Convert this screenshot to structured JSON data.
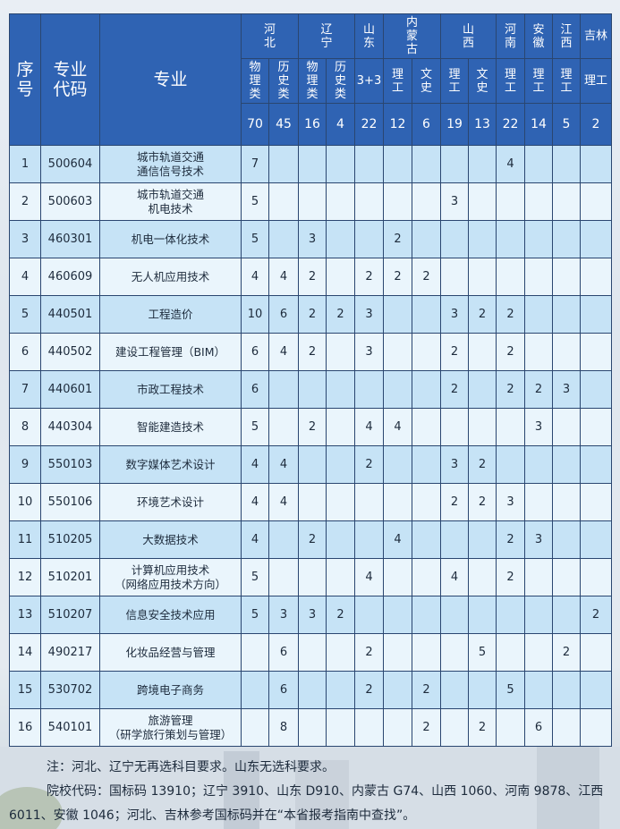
{
  "header": {
    "seq": "序号",
    "code": "专业代码",
    "major": "专业",
    "provinces": [
      {
        "name": "河北",
        "subjects": [
          {
            "label": "物理类",
            "count": "70"
          },
          {
            "label": "历史类",
            "count": "45"
          }
        ]
      },
      {
        "name": "辽宁",
        "subjects": [
          {
            "label": "物理类",
            "count": "16"
          },
          {
            "label": "历史类",
            "count": "4"
          }
        ]
      },
      {
        "name": "山东",
        "subjects": [
          {
            "label": "3+3",
            "count": "22"
          }
        ]
      },
      {
        "name": "内蒙古",
        "subjects": [
          {
            "label": "理工",
            "count": "12"
          },
          {
            "label": "文史",
            "count": "6"
          }
        ]
      },
      {
        "name": "山西",
        "subjects": [
          {
            "label": "理工",
            "count": "19"
          },
          {
            "label": "文史",
            "count": "13"
          }
        ]
      },
      {
        "name": "河南",
        "subjects": [
          {
            "label": "理工",
            "count": "22"
          }
        ]
      },
      {
        "name": "安徽",
        "subjects": [
          {
            "label": "理工",
            "count": "14"
          }
        ]
      },
      {
        "name": "江西",
        "subjects": [
          {
            "label": "理工",
            "count": "5"
          }
        ]
      },
      {
        "name": "吉林",
        "subjects": [
          {
            "label": "理工",
            "count": "2"
          }
        ]
      }
    ]
  },
  "rows": [
    {
      "seq": "1",
      "code": "500604",
      "major": [
        "城市轨道交通",
        "通信信号技术"
      ],
      "values": [
        "7",
        "",
        "",
        "",
        "",
        "",
        "",
        "",
        "",
        "4",
        "",
        "",
        ""
      ]
    },
    {
      "seq": "2",
      "code": "500603",
      "major": [
        "城市轨道交通",
        "机电技术"
      ],
      "values": [
        "5",
        "",
        "",
        "",
        "",
        "",
        "",
        "3",
        "",
        "",
        "",
        "",
        ""
      ]
    },
    {
      "seq": "3",
      "code": "460301",
      "major": [
        "机电一体化技术"
      ],
      "values": [
        "5",
        "",
        "3",
        "",
        "",
        "2",
        "",
        "",
        "",
        "",
        "",
        "",
        ""
      ]
    },
    {
      "seq": "4",
      "code": "460609",
      "major": [
        "无人机应用技术"
      ],
      "values": [
        "4",
        "4",
        "2",
        "",
        "2",
        "2",
        "2",
        "",
        "",
        "",
        "",
        "",
        ""
      ]
    },
    {
      "seq": "5",
      "code": "440501",
      "major": [
        "工程造价"
      ],
      "values": [
        "10",
        "6",
        "2",
        "2",
        "3",
        "",
        "",
        "3",
        "2",
        "2",
        "",
        "",
        ""
      ]
    },
    {
      "seq": "6",
      "code": "440502",
      "major": [
        "建设工程管理（BIM）"
      ],
      "values": [
        "6",
        "4",
        "2",
        "",
        "3",
        "",
        "",
        "2",
        "",
        "2",
        "",
        "",
        ""
      ]
    },
    {
      "seq": "7",
      "code": "440601",
      "major": [
        "市政工程技术"
      ],
      "values": [
        "6",
        "",
        "",
        "",
        "",
        "",
        "",
        "2",
        "",
        "2",
        "2",
        "3",
        ""
      ]
    },
    {
      "seq": "8",
      "code": "440304",
      "major": [
        "智能建造技术"
      ],
      "values": [
        "5",
        "",
        "2",
        "",
        "4",
        "4",
        "",
        "",
        "",
        "",
        "3",
        "",
        ""
      ]
    },
    {
      "seq": "9",
      "code": "550103",
      "major": [
        "数字媒体艺术设计"
      ],
      "values": [
        "4",
        "4",
        "",
        "",
        "2",
        "",
        "",
        "3",
        "2",
        "",
        "",
        "",
        ""
      ]
    },
    {
      "seq": "10",
      "code": "550106",
      "major": [
        "环境艺术设计"
      ],
      "values": [
        "4",
        "4",
        "",
        "",
        "",
        "",
        "",
        "2",
        "2",
        "3",
        "",
        "",
        ""
      ]
    },
    {
      "seq": "11",
      "code": "510205",
      "major": [
        "大数据技术"
      ],
      "values": [
        "4",
        "",
        "2",
        "",
        "",
        "4",
        "",
        "",
        "",
        "2",
        "3",
        "",
        ""
      ]
    },
    {
      "seq": "12",
      "code": "510201",
      "major": [
        "计算机应用技术",
        "（网络应用技术方向）"
      ],
      "values": [
        "5",
        "",
        "",
        "",
        "4",
        "",
        "",
        "4",
        "",
        "2",
        "",
        "",
        ""
      ]
    },
    {
      "seq": "13",
      "code": "510207",
      "major": [
        "信息安全技术应用"
      ],
      "values": [
        "5",
        "3",
        "3",
        "2",
        "",
        "",
        "",
        "",
        "",
        "",
        "",
        "",
        "2"
      ]
    },
    {
      "seq": "14",
      "code": "490217",
      "major": [
        "化妆品经营与管理"
      ],
      "values": [
        "",
        "6",
        "",
        "",
        "2",
        "",
        "",
        "",
        "5",
        "",
        "",
        "2",
        ""
      ]
    },
    {
      "seq": "15",
      "code": "530702",
      "major": [
        "跨境电子商务"
      ],
      "values": [
        "",
        "6",
        "",
        "",
        "2",
        "",
        "2",
        "",
        "",
        "5",
        "",
        "",
        ""
      ]
    },
    {
      "seq": "16",
      "code": "540101",
      "major": [
        "旅游管理",
        "（研学旅行策划与管理）"
      ],
      "values": [
        "",
        "8",
        "",
        "",
        "",
        "",
        "2",
        "",
        "2",
        "",
        "6",
        "",
        ""
      ]
    }
  ],
  "notes": [
    "注：河北、辽宁无再选科目要求。山东无选科要求。",
    "院校代码：国标码 13910；辽宁 3910、山东 D910、内蒙古 G74、山西 1060、河南 9878、江西 6011、安徽 1046；河北、吉林参考国标码并在“本省报考指南中查找”。"
  ],
  "colors": {
    "header": "#2f63b3",
    "row_odd": "#c6e3f6",
    "row_even": "#eaf5fc",
    "border": "#2a4670"
  }
}
